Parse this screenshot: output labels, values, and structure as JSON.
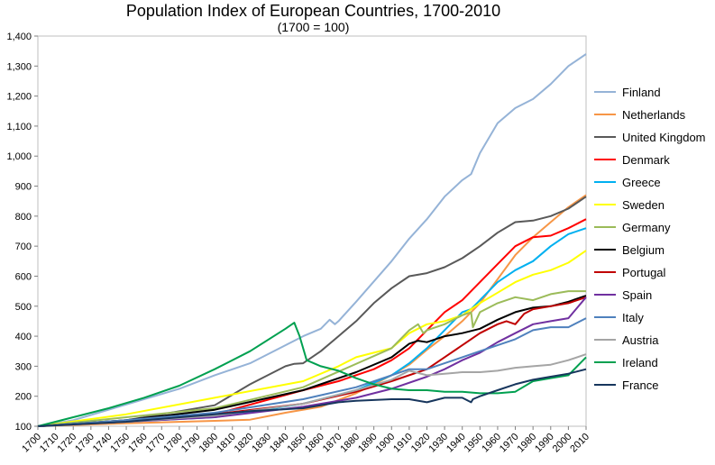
{
  "chart_data": {
    "type": "line",
    "title": "Population Index of European Countries, 1700-2010",
    "subtitle": "(1700 = 100)",
    "xlabel": "",
    "ylabel": "",
    "xlim": [
      1700,
      2010
    ],
    "ylim": [
      100,
      1400
    ],
    "xticks": [
      "1700",
      "1710",
      "1720",
      "1730",
      "1740",
      "1750",
      "1760",
      "1770",
      "1780",
      "1790",
      "1800",
      "1810",
      "1820",
      "1830",
      "1840",
      "1850",
      "1860",
      "1870",
      "1880",
      "1890",
      "1900",
      "1910",
      "1920",
      "1930",
      "1940",
      "1950",
      "1960",
      "1970",
      "1980",
      "1990",
      "2000",
      "2010"
    ],
    "yticks": [
      "100",
      "200",
      "300",
      "400",
      "500",
      "600",
      "700",
      "800",
      "900",
      "1,000",
      "1,100",
      "1,200",
      "1,300",
      "1,400"
    ],
    "grid": "horizontal-none",
    "legend_position": "right",
    "series": [
      {
        "name": "Finland",
        "color": "#95B3D7",
        "x": [
          1700,
          1720,
          1740,
          1760,
          1780,
          1800,
          1820,
          1840,
          1850,
          1860,
          1865,
          1868,
          1870,
          1880,
          1900,
          1910,
          1920,
          1930,
          1940,
          1945,
          1950,
          1960,
          1970,
          1980,
          1990,
          2000,
          2010
        ],
        "y": [
          100,
          120,
          155,
          190,
          225,
          270,
          310,
          370,
          400,
          425,
          455,
          440,
          450,
          515,
          650,
          725,
          790,
          865,
          920,
          940,
          1010,
          1110,
          1160,
          1190,
          1240,
          1300,
          1340
        ]
      },
      {
        "name": "Netherlands",
        "color": "#F79646",
        "x": [
          1700,
          1750,
          1800,
          1820,
          1840,
          1860,
          1880,
          1900,
          1910,
          1920,
          1930,
          1940,
          1950,
          1960,
          1970,
          1980,
          1990,
          2000,
          2010
        ],
        "y": [
          100,
          110,
          118,
          122,
          145,
          165,
          210,
          270,
          305,
          355,
          400,
          450,
          510,
          590,
          670,
          730,
          780,
          830,
          870
        ]
      },
      {
        "name": "United Kingdom",
        "color": "#595959",
        "x": [
          1700,
          1750,
          1800,
          1820,
          1840,
          1845,
          1850,
          1860,
          1870,
          1880,
          1890,
          1900,
          1910,
          1920,
          1930,
          1940,
          1950,
          1960,
          1970,
          1980,
          1990,
          2000,
          2010
        ],
        "y": [
          100,
          120,
          170,
          240,
          300,
          308,
          310,
          350,
          400,
          450,
          510,
          560,
          600,
          610,
          630,
          660,
          700,
          745,
          780,
          785,
          800,
          825,
          865
        ]
      },
      {
        "name": "Denmark",
        "color": "#FF0000",
        "x": [
          1700,
          1750,
          1800,
          1850,
          1870,
          1890,
          1900,
          1910,
          1920,
          1930,
          1940,
          1950,
          1960,
          1970,
          1980,
          1990,
          2000,
          2010
        ],
        "y": [
          100,
          118,
          140,
          220,
          250,
          290,
          320,
          360,
          420,
          480,
          520,
          580,
          640,
          700,
          730,
          735,
          760,
          790
        ]
      },
      {
        "name": "Greece",
        "color": "#00B0F0",
        "x": [
          1700,
          1750,
          1800,
          1850,
          1880,
          1900,
          1910,
          1920,
          1930,
          1940,
          1945,
          1950,
          1960,
          1970,
          1980,
          1990,
          2000,
          2010
        ],
        "y": [
          100,
          115,
          130,
          175,
          220,
          270,
          310,
          360,
          420,
          480,
          490,
          520,
          580,
          620,
          650,
          700,
          740,
          760
        ]
      },
      {
        "name": "Sweden",
        "color": "#FFFF00",
        "x": [
          1700,
          1750,
          1800,
          1850,
          1870,
          1880,
          1890,
          1900,
          1910,
          1920,
          1930,
          1940,
          1950,
          1960,
          1970,
          1980,
          1990,
          2000,
          2010
        ],
        "y": [
          100,
          140,
          195,
          250,
          300,
          330,
          345,
          360,
          410,
          440,
          450,
          470,
          510,
          545,
          580,
          605,
          620,
          645,
          685
        ]
      },
      {
        "name": "Germany",
        "color": "#9BBB59",
        "x": [
          1700,
          1750,
          1800,
          1850,
          1900,
          1910,
          1915,
          1918,
          1920,
          1930,
          1940,
          1945,
          1946,
          1950,
          1960,
          1970,
          1980,
          1990,
          2000,
          2010
        ],
        "y": [
          100,
          130,
          160,
          230,
          360,
          420,
          440,
          410,
          420,
          440,
          470,
          480,
          430,
          480,
          510,
          530,
          520,
          540,
          550,
          550
        ]
      },
      {
        "name": "Belgium",
        "color": "#000000",
        "x": [
          1700,
          1750,
          1800,
          1850,
          1880,
          1900,
          1910,
          1915,
          1920,
          1930,
          1940,
          1950,
          1960,
          1970,
          1980,
          1990,
          2000,
          2010
        ],
        "y": [
          100,
          120,
          155,
          220,
          280,
          330,
          375,
          385,
          380,
          400,
          410,
          425,
          455,
          480,
          495,
          500,
          515,
          535
        ]
      },
      {
        "name": "Portugal",
        "color": "#C00000",
        "x": [
          1700,
          1750,
          1800,
          1850,
          1880,
          1900,
          1920,
          1930,
          1940,
          1950,
          1960,
          1965,
          1970,
          1975,
          1980,
          1990,
          2000,
          2010
        ],
        "y": [
          100,
          118,
          140,
          175,
          215,
          250,
          290,
          330,
          370,
          410,
          440,
          450,
          440,
          475,
          490,
          500,
          510,
          530
        ]
      },
      {
        "name": "Spain",
        "color": "#7030A0",
        "x": [
          1700,
          1750,
          1800,
          1850,
          1880,
          1900,
          1920,
          1930,
          1940,
          1950,
          1960,
          1970,
          1980,
          1990,
          2000,
          2010
        ],
        "y": [
          100,
          115,
          130,
          165,
          195,
          225,
          265,
          290,
          320,
          345,
          380,
          410,
          440,
          450,
          460,
          530
        ]
      },
      {
        "name": "Italy",
        "color": "#4F81BD",
        "x": [
          1700,
          1750,
          1800,
          1850,
          1880,
          1900,
          1910,
          1920,
          1930,
          1940,
          1950,
          1960,
          1970,
          1980,
          1990,
          2000,
          2010
        ],
        "y": [
          100,
          120,
          145,
          190,
          230,
          270,
          290,
          290,
          310,
          330,
          350,
          370,
          390,
          420,
          430,
          430,
          460
        ]
      },
      {
        "name": "Austria",
        "color": "#A5A5A5",
        "x": [
          1700,
          1750,
          1800,
          1850,
          1880,
          1900,
          1910,
          1920,
          1930,
          1940,
          1950,
          1960,
          1970,
          1980,
          1990,
          2000,
          2010
        ],
        "y": [
          100,
          115,
          135,
          175,
          220,
          255,
          285,
          270,
          275,
          280,
          280,
          285,
          295,
          300,
          305,
          320,
          340
        ]
      },
      {
        "name": "Ireland",
        "color": "#00A050",
        "x": [
          1700,
          1720,
          1740,
          1760,
          1780,
          1800,
          1820,
          1840,
          1845,
          1848,
          1852,
          1860,
          1870,
          1880,
          1890,
          1900,
          1910,
          1920,
          1930,
          1940,
          1950,
          1960,
          1970,
          1980,
          1990,
          2000,
          2010
        ],
        "y": [
          100,
          130,
          160,
          195,
          235,
          290,
          350,
          425,
          445,
          400,
          320,
          300,
          285,
          260,
          240,
          225,
          220,
          220,
          215,
          215,
          210,
          210,
          215,
          250,
          260,
          270,
          330
        ]
      },
      {
        "name": "France",
        "color": "#17365D",
        "x": [
          1700,
          1750,
          1800,
          1820,
          1850,
          1870,
          1880,
          1900,
          1910,
          1920,
          1930,
          1940,
          1945,
          1946,
          1950,
          1960,
          1970,
          1980,
          1990,
          2000,
          2010
        ],
        "y": [
          100,
          115,
          140,
          150,
          160,
          180,
          185,
          190,
          190,
          180,
          195,
          195,
          180,
          190,
          200,
          220,
          240,
          255,
          265,
          275,
          290
        ]
      }
    ]
  }
}
